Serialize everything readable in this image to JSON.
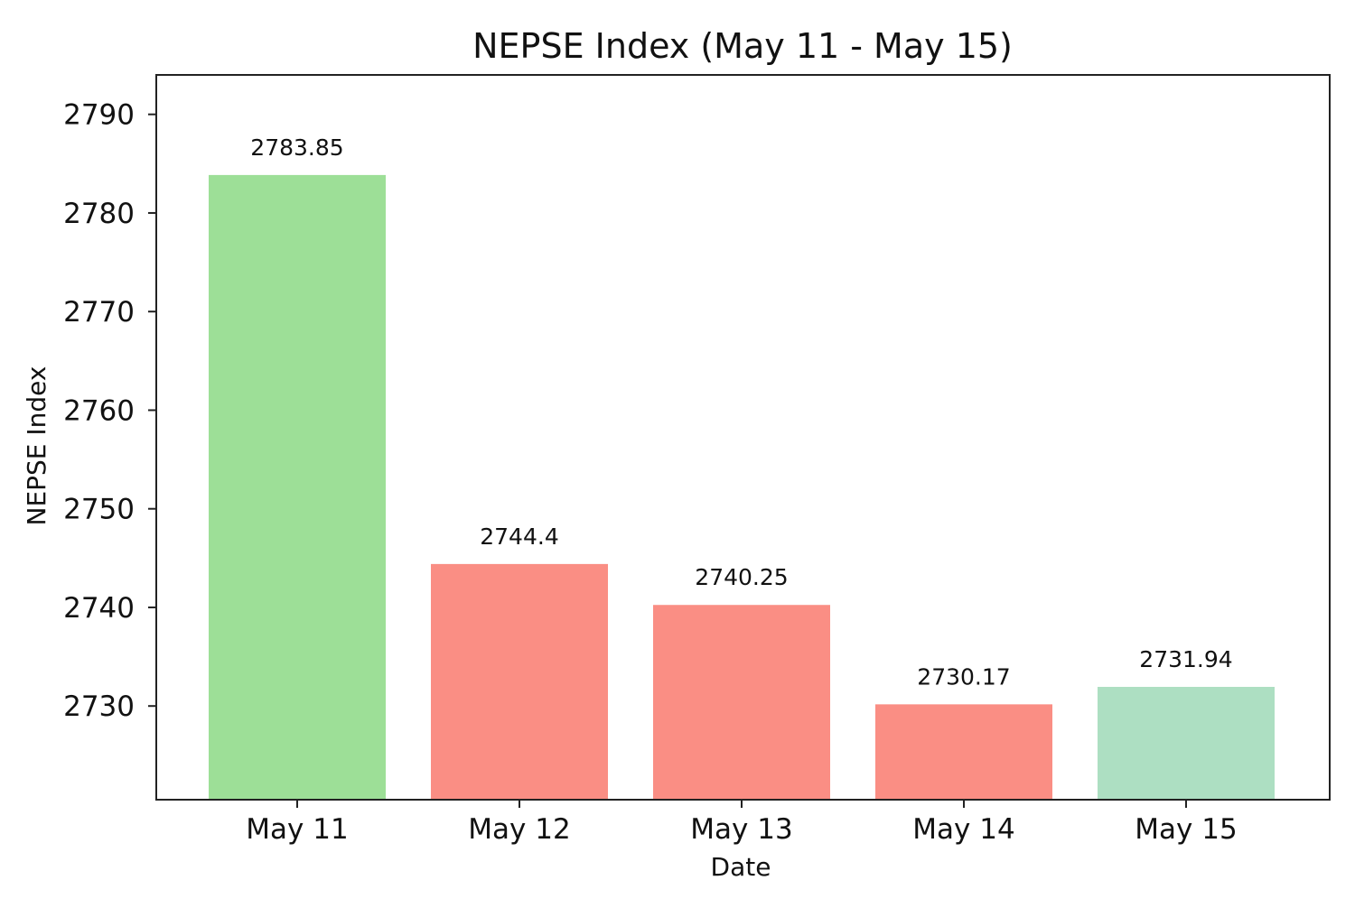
{
  "chart_data": {
    "type": "bar",
    "title": "NEPSE Index (May 11 - May 15)",
    "xlabel": "Date",
    "ylabel": "NEPSE Index",
    "categories": [
      "May 11",
      "May 12",
      "May 13",
      "May 14",
      "May 15"
    ],
    "values": [
      2783.85,
      2744.4,
      2740.25,
      2730.17,
      2731.94
    ],
    "data_labels": [
      "2783.85",
      "2744.4",
      "2740.25",
      "2730.17",
      "2731.94"
    ],
    "colors": [
      "#9ddf97",
      "#fa8e84",
      "#fa8e84",
      "#fa8e84",
      "#addfc2"
    ],
    "ylim": [
      2720.5,
      2794
    ],
    "yticks": [
      2730,
      2740,
      2750,
      2760,
      2770,
      2780,
      2790
    ],
    "grid": false,
    "legend": "none"
  }
}
